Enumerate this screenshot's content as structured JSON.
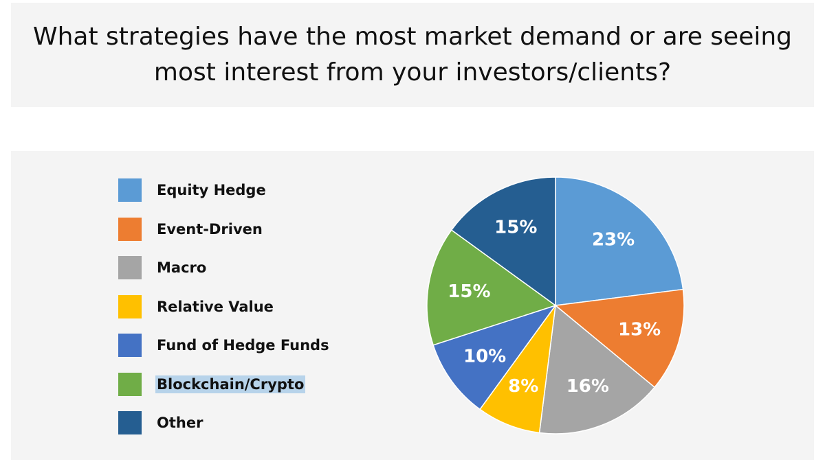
{
  "header": {
    "title_line1": "What strategies have the most market demand or are seeing",
    "title_line2": "most interest from your investors/clients?"
  },
  "chart_data": {
    "type": "pie",
    "title": "What strategies have the most market demand or are seeing most interest from your investors/clients?",
    "start_angle": "12 o'clock, clockwise",
    "legend_position": "left",
    "slices": [
      {
        "label": "Equity Hedge",
        "value": 23,
        "display": "23%",
        "color": "#5b9bd5"
      },
      {
        "label": "Event-Driven",
        "value": 13,
        "display": "13%",
        "color": "#ed7d31"
      },
      {
        "label": "Macro",
        "value": 16,
        "display": "16%",
        "color": "#a5a5a5"
      },
      {
        "label": "Relative Value",
        "value": 8,
        "display": "8%",
        "color": "#ffc000"
      },
      {
        "label": "Fund of Hedge Funds",
        "value": 10,
        "display": "10%",
        "color": "#4472c4"
      },
      {
        "label": "Blockchain/Crypto",
        "value": 15,
        "display": "15%",
        "color": "#70ad47",
        "highlighted": true
      },
      {
        "label": "Other",
        "value": 15,
        "display": "15%",
        "color": "#255e91"
      }
    ]
  }
}
